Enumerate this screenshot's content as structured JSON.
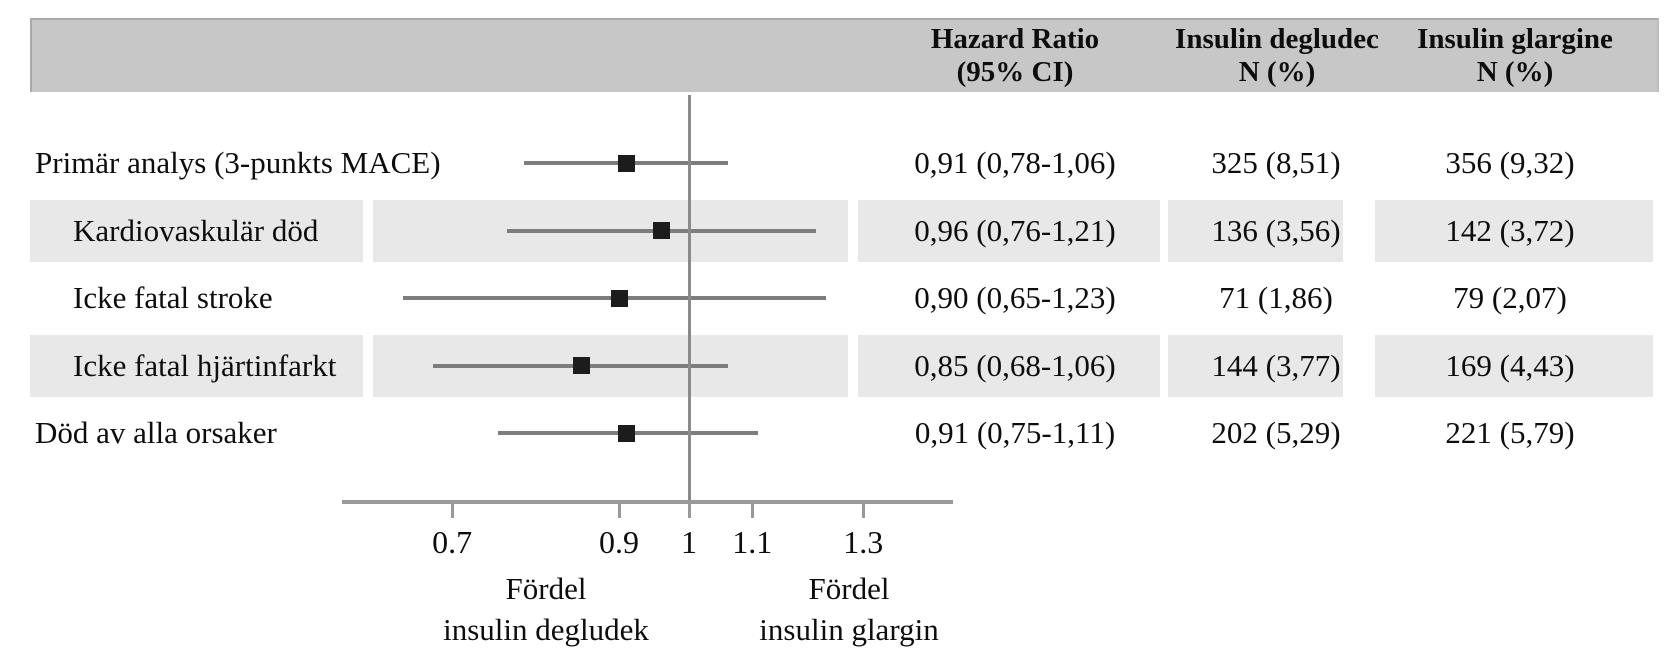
{
  "colors": {
    "header_bg": "#c7c7c7",
    "row_shading": "#e8e8e8",
    "ci_line": "#7d7d7d",
    "axis_line": "#999999",
    "reference_line": "#8a8a8a",
    "marker": "#1c1c1c",
    "text": "#111111"
  },
  "table": {
    "columns": [
      {
        "line1": "Hazard Ratio",
        "line2": "(95% CI)"
      },
      {
        "line1": "Insulin degludec",
        "line2": "N (%)"
      },
      {
        "line1": "Insulin glargine",
        "line2": "N (%)"
      }
    ],
    "rows": [
      {
        "label": "Primär analys (3-punkts MACE)",
        "indent": false,
        "shaded": false,
        "hr_ci": "0,91 (0,78-1,06)",
        "degludec": "325 (8,51)",
        "glargine": "356 (9,32)"
      },
      {
        "label": "Kardiovaskulär död",
        "indent": true,
        "shaded": true,
        "hr_ci": "0,96 (0,76-1,21)",
        "degludec": "136 (3,56)",
        "glargine": "142 (3,72)"
      },
      {
        "label": "Icke fatal stroke",
        "indent": true,
        "shaded": false,
        "hr_ci": "0,90 (0,65-1,23)",
        "degludec": "71 (1,86)",
        "glargine": "79 (2,07)"
      },
      {
        "label": "Icke fatal hjärtinfarkt",
        "indent": true,
        "shaded": true,
        "hr_ci": "0,85 (0,68-1,06)",
        "degludec": "144 (3,77)",
        "glargine": "169 (4,43)"
      },
      {
        "label": "Död av alla orsaker",
        "indent": false,
        "shaded": false,
        "hr_ci": "0,91 (0,75-1,11)",
        "degludec": "202 (5,29)",
        "glargine": "221 (5,79)"
      }
    ]
  },
  "chart_data": {
    "type": "scatter",
    "subtype": "forest-plot",
    "x_scale": "log",
    "x_range": [
      0.59,
      1.49
    ],
    "reference_line_x": 1,
    "x_tick_values": [
      0.7,
      0.9,
      1,
      1.1,
      1.3
    ],
    "x_tick_labels": [
      "0.7",
      "0.9",
      "1",
      "1.1",
      "1.3"
    ],
    "grid": false,
    "legend": "none",
    "series": [
      {
        "label": "Primär analys (3-punkts MACE)",
        "hr": 0.91,
        "ci_low": 0.78,
        "ci_high": 1.06
      },
      {
        "label": "Kardiovaskulär död",
        "hr": 0.96,
        "ci_low": 0.76,
        "ci_high": 1.21
      },
      {
        "label": "Icke fatal stroke",
        "hr": 0.9,
        "ci_low": 0.65,
        "ci_high": 1.23
      },
      {
        "label": "Icke fatal hjärtinfarkt",
        "hr": 0.85,
        "ci_low": 0.68,
        "ci_high": 1.06
      },
      {
        "label": "Död av alla orsaker",
        "hr": 0.91,
        "ci_low": 0.75,
        "ci_high": 1.11
      }
    ],
    "favors_left": {
      "line1": "Fördel",
      "line2": "insulin degludek"
    },
    "favors_right": {
      "line1": "Fördel",
      "line2": "insulin glargin"
    }
  }
}
